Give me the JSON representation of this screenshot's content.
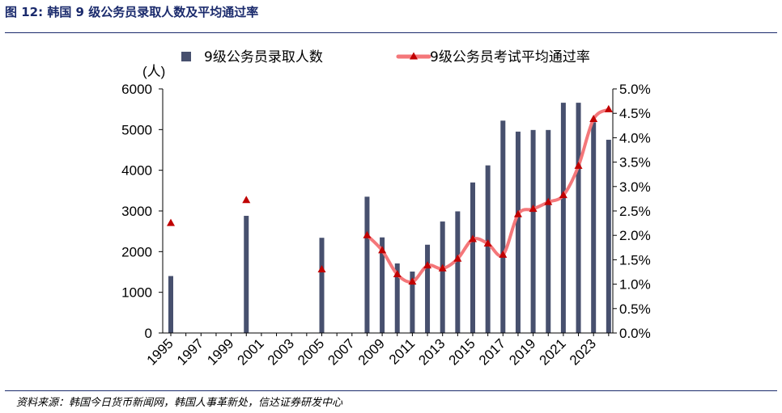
{
  "figure": {
    "title": "图 12: 韩国 9 级公务员录取人数及平均通过率",
    "source": "资料来源：韩国今日货币新闻网，韩国人事革新处，信达证券研发中心"
  },
  "colors": {
    "bar": "#47506e",
    "line": "#f4777a",
    "marker": "#c00000"
  },
  "chart_data": {
    "type": "bar+line",
    "x_tick_labels": [
      "1995",
      "1997",
      "1999",
      "2001",
      "2003",
      "2005",
      "2007",
      "2009",
      "2011",
      "2013",
      "2015",
      "2017",
      "2019",
      "2021",
      "2023"
    ],
    "y_left_label": "(人)",
    "y_left_ticks": [
      "0",
      "1000",
      "2000",
      "3000",
      "4000",
      "5000",
      "6000"
    ],
    "y_left_range": [
      0,
      6000
    ],
    "y_right_ticks": [
      "0.0%",
      "0.5%",
      "1.0%",
      "1.5%",
      "2.0%",
      "2.5%",
      "3.0%",
      "3.5%",
      "4.0%",
      "4.5%",
      "5.0%"
    ],
    "y_right_range": [
      0,
      5.0
    ],
    "x_range": [
      1995,
      2024
    ],
    "series": [
      {
        "name": "9级公务员录取人数",
        "type": "bar",
        "axis": "left",
        "points": [
          {
            "x": 1995,
            "y": 1400
          },
          {
            "x": 2000,
            "y": 2880
          },
          {
            "x": 2005,
            "y": 2340
          },
          {
            "x": 2008,
            "y": 3350
          },
          {
            "x": 2009,
            "y": 2350
          },
          {
            "x": 2010,
            "y": 1710
          },
          {
            "x": 2011,
            "y": 1510
          },
          {
            "x": 2012,
            "y": 2170
          },
          {
            "x": 2013,
            "y": 2740
          },
          {
            "x": 2014,
            "y": 2990
          },
          {
            "x": 2015,
            "y": 3700
          },
          {
            "x": 2016,
            "y": 4120
          },
          {
            "x": 2017,
            "y": 5220
          },
          {
            "x": 2018,
            "y": 4950
          },
          {
            "x": 2019,
            "y": 4990
          },
          {
            "x": 2020,
            "y": 4990
          },
          {
            "x": 2021,
            "y": 5660
          },
          {
            "x": 2022,
            "y": 5660
          },
          {
            "x": 2023,
            "y": 5180
          },
          {
            "x": 2024,
            "y": 4750
          }
        ]
      },
      {
        "name": "9级公务员考试平均通过率",
        "type": "line",
        "axis": "right",
        "isolated_points": [
          {
            "x": 1995,
            "y": 2.25
          },
          {
            "x": 2000,
            "y": 2.72
          },
          {
            "x": 2005,
            "y": 1.3
          }
        ],
        "points": [
          {
            "x": 2008,
            "y": 2.0
          },
          {
            "x": 2009,
            "y": 1.69
          },
          {
            "x": 2010,
            "y": 1.2
          },
          {
            "x": 2011,
            "y": 1.05
          },
          {
            "x": 2012,
            "y": 1.38
          },
          {
            "x": 2013,
            "y": 1.32
          },
          {
            "x": 2014,
            "y": 1.52
          },
          {
            "x": 2015,
            "y": 1.92
          },
          {
            "x": 2016,
            "y": 1.83
          },
          {
            "x": 2017,
            "y": 1.6
          },
          {
            "x": 2018,
            "y": 2.43
          },
          {
            "x": 2019,
            "y": 2.54
          },
          {
            "x": 2020,
            "y": 2.68
          },
          {
            "x": 2021,
            "y": 2.82
          },
          {
            "x": 2022,
            "y": 3.42
          },
          {
            "x": 2023,
            "y": 4.38
          },
          {
            "x": 2024,
            "y": 4.58
          }
        ]
      }
    ]
  }
}
